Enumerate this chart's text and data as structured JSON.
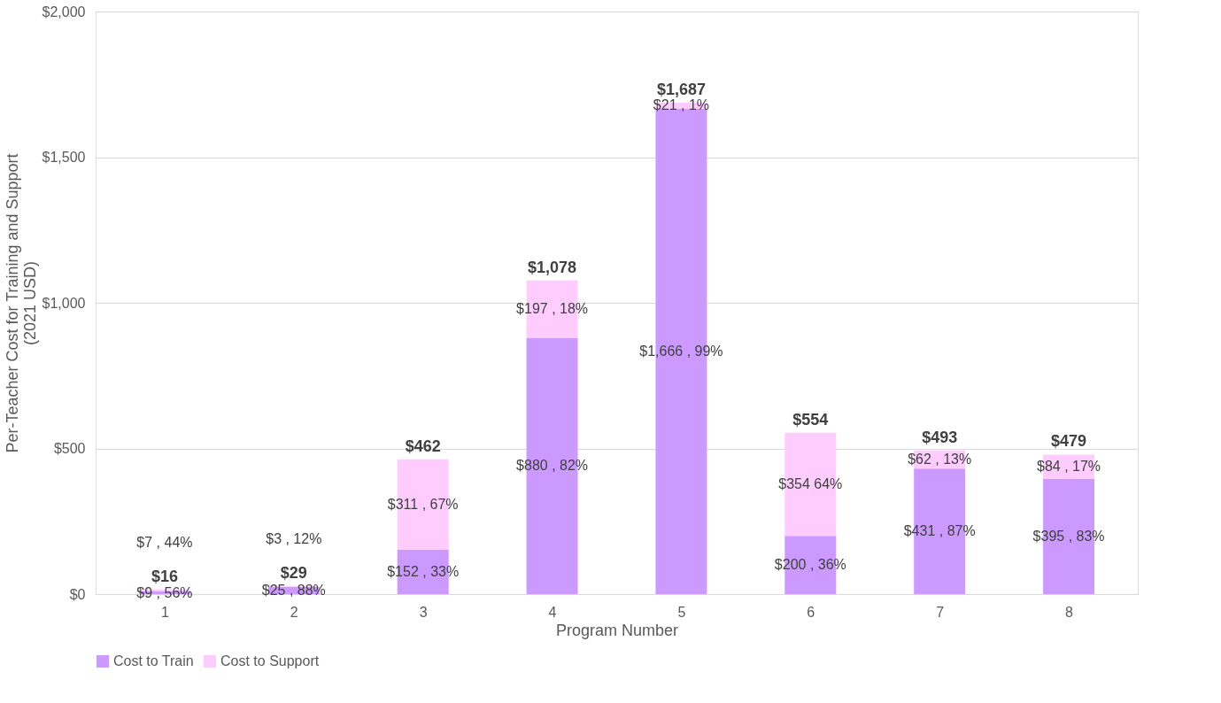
{
  "chart_data": {
    "type": "bar",
    "stacked": true,
    "xlabel": "Program Number",
    "ylabel": "Per-Teacher Cost for Training and Support\n(2021 USD)",
    "categories": [
      "1",
      "2",
      "3",
      "4",
      "5",
      "6",
      "7",
      "8"
    ],
    "series": [
      {
        "name": "Cost to Train",
        "color": "#cc99ff",
        "values": [
          9,
          25,
          152,
          880,
          1666,
          200,
          431,
          395
        ],
        "value_labels": [
          "$9 , 56%",
          "$25 , 88%",
          "$152 , 33%",
          "$880 , 82%",
          "$1,666 , 99%",
          "$200 , 36%",
          "$431 , 87%",
          "$395 , 83%"
        ]
      },
      {
        "name": "Cost to Support",
        "color": "#ffccff",
        "values": [
          7,
          3,
          311,
          197,
          21,
          354,
          62,
          84
        ],
        "value_labels": [
          "$7 , 44%",
          "$3 , 12%",
          "$311 , 67%",
          "$197 , 18%",
          "$21 , 1%",
          "$354 64%",
          "$62 , 13%",
          "$84 , 17%"
        ]
      }
    ],
    "totals": [
      "$16",
      "$29",
      "$462",
      "$1,078",
      "$1,687",
      "$554",
      "$493",
      "$479"
    ],
    "ylim": [
      0,
      2000
    ],
    "yticks": [
      {
        "value": 0,
        "label": "$0"
      },
      {
        "value": 500,
        "label": "$500"
      },
      {
        "value": 1000,
        "label": "$1,000"
      },
      {
        "value": 1500,
        "label": "$1,500"
      },
      {
        "value": 2000,
        "label": "$2,000"
      }
    ],
    "grid": "y",
    "legend": "bottom"
  }
}
